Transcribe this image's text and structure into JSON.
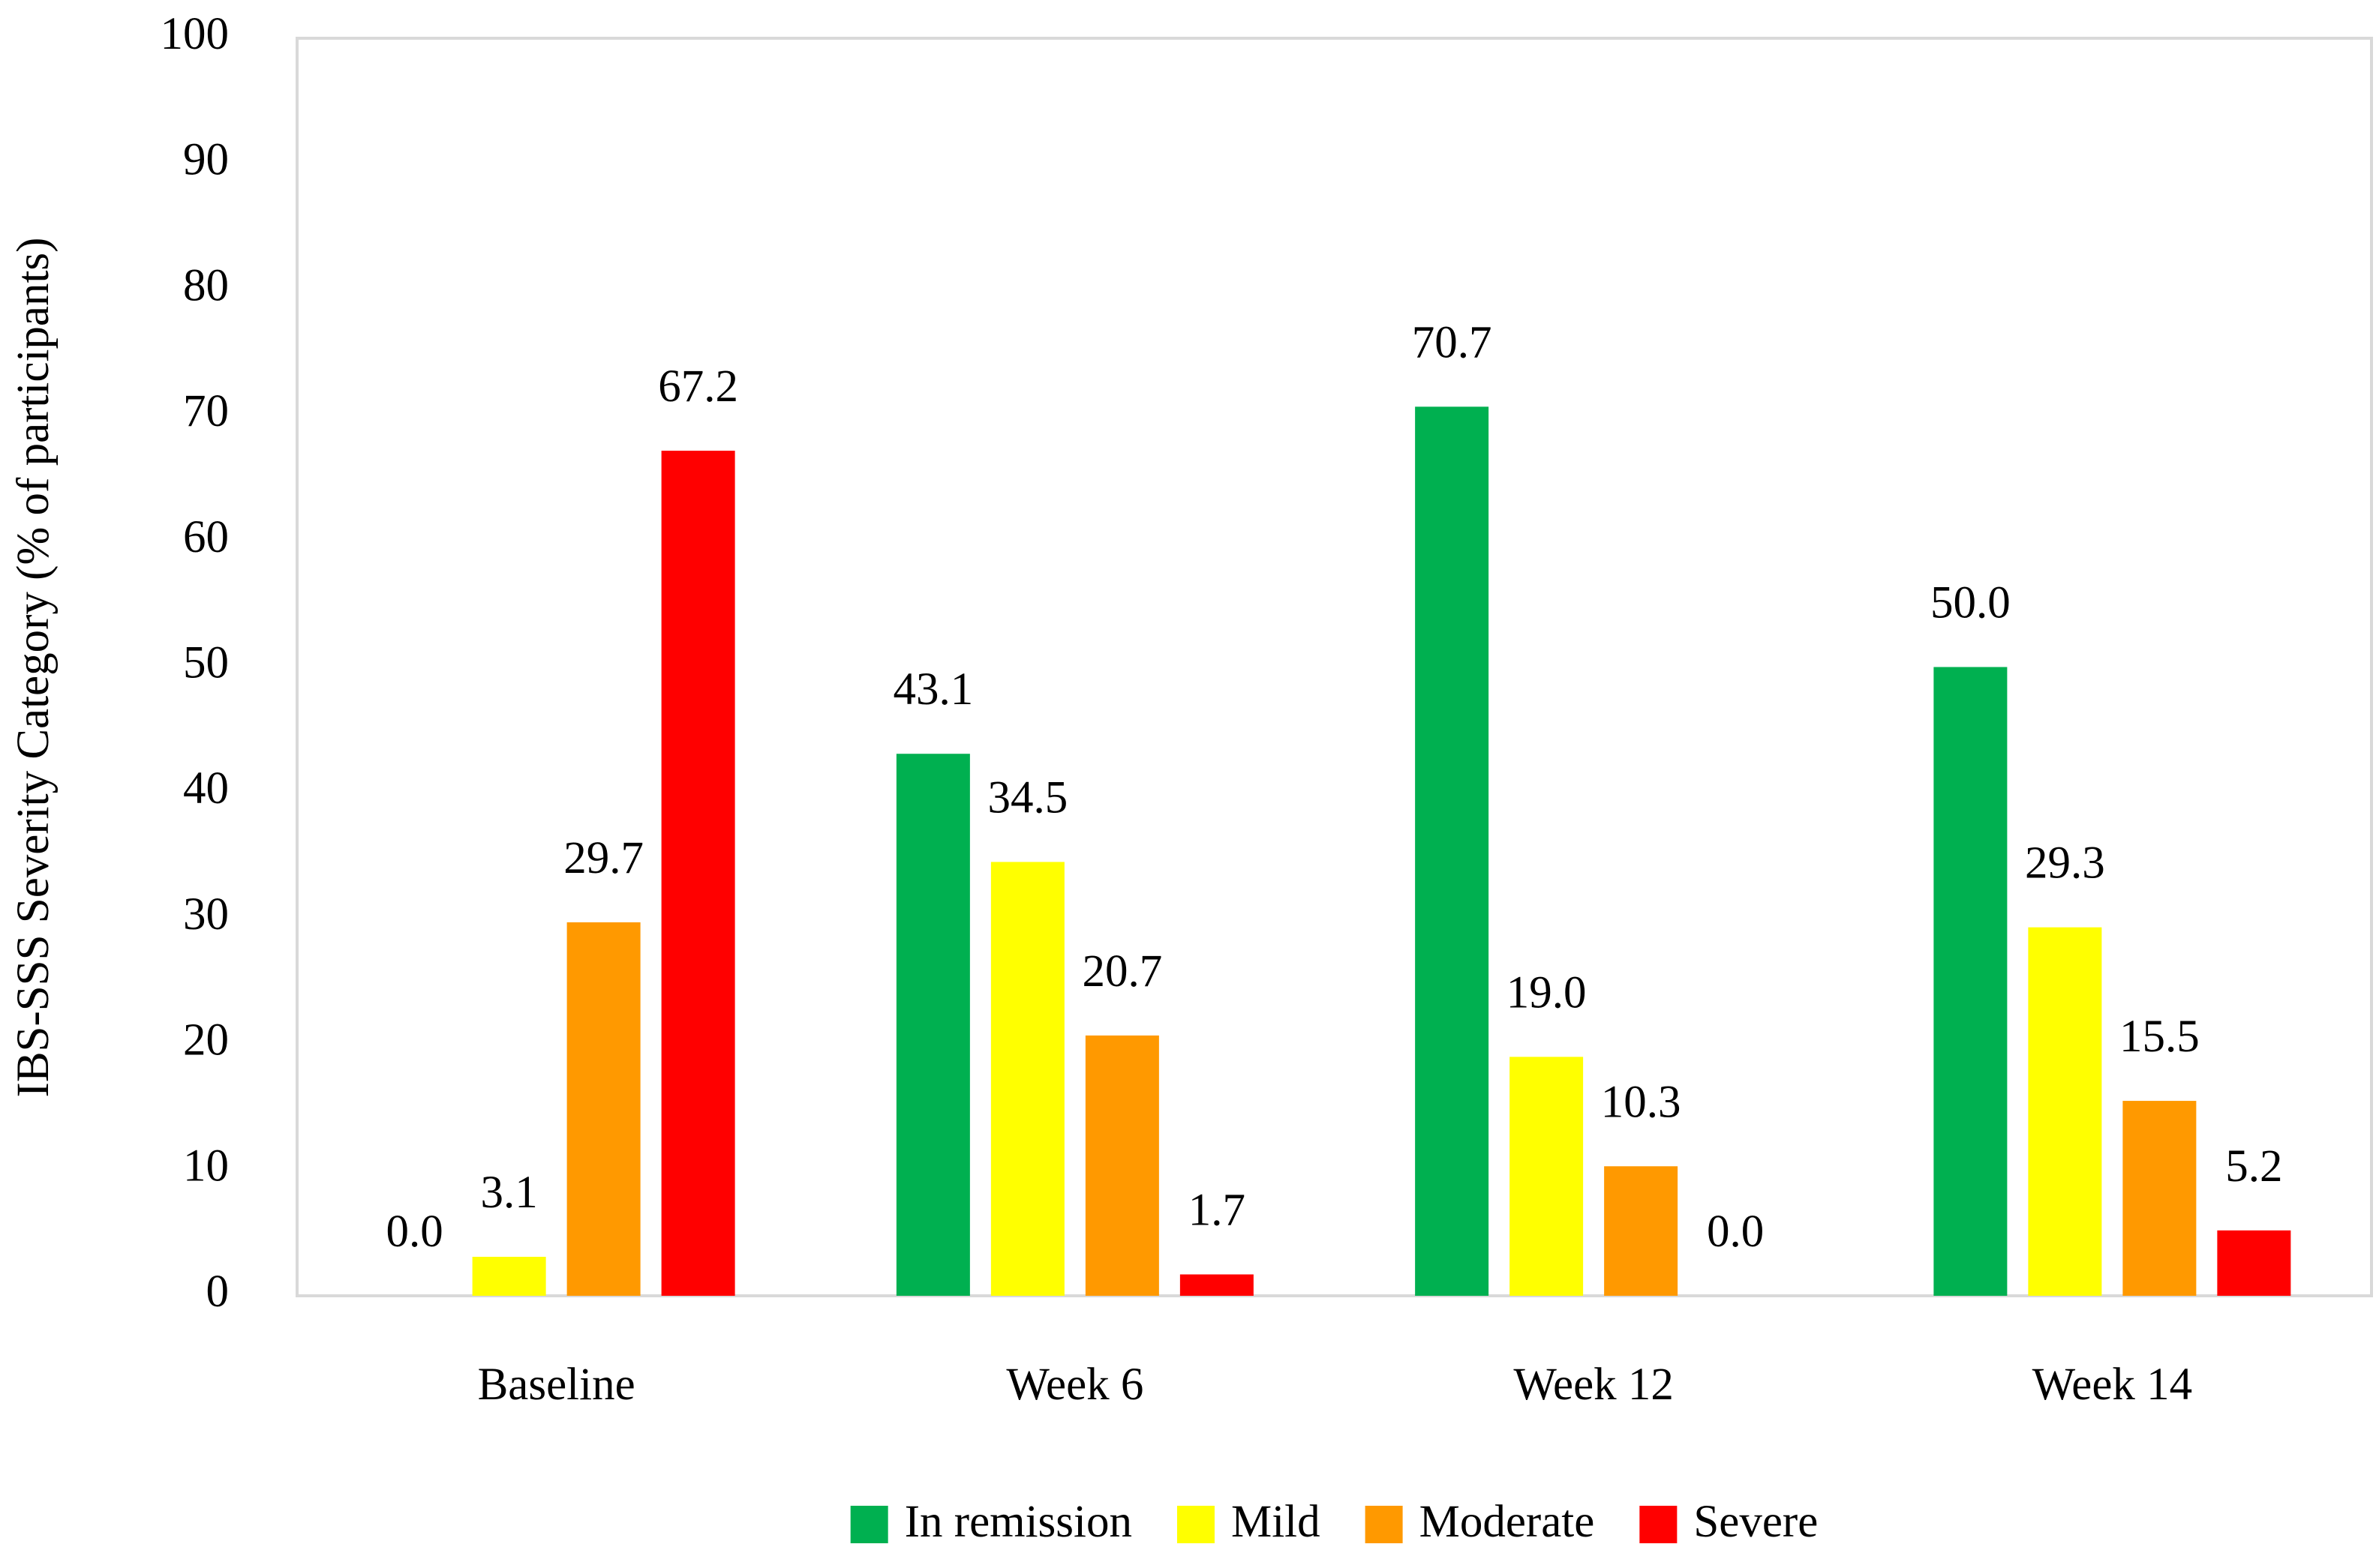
{
  "chart_data": {
    "type": "bar",
    "y_label": "IBS-SSS Severity Category (% of participants)",
    "categories": [
      "Baseline",
      "Week 6",
      "Week 12",
      "Week 14"
    ],
    "series": [
      {
        "name": "In remission",
        "color": "#00b050",
        "values": [
          0,
          43.1,
          70.7,
          50
        ],
        "value_labels": [
          "0.0",
          "43.1",
          "70.7",
          "50.0"
        ]
      },
      {
        "name": "Mild",
        "color": "#ffff00",
        "values": [
          3.1,
          34.5,
          19,
          29.3
        ],
        "value_labels": [
          "3.1",
          "34.5",
          "19.0",
          "29.3"
        ]
      },
      {
        "name": "Moderate",
        "color": "#ff9900",
        "values": [
          29.7,
          20.7,
          10.3,
          15.5
        ],
        "value_labels": [
          "29.7",
          "20.7",
          "10.3",
          "15.5"
        ]
      },
      {
        "name": "Severe",
        "color": "#ff0000",
        "values": [
          67.2,
          1.7,
          0,
          5.2
        ],
        "value_labels": [
          "67.2",
          "1.7",
          "0.0",
          "5.2"
        ]
      }
    ],
    "ylim": [
      0,
      100
    ],
    "yticks": [
      0,
      10,
      20,
      30,
      40,
      50,
      60,
      70,
      80,
      90,
      100
    ],
    "grid": false,
    "legend": "bottom"
  }
}
